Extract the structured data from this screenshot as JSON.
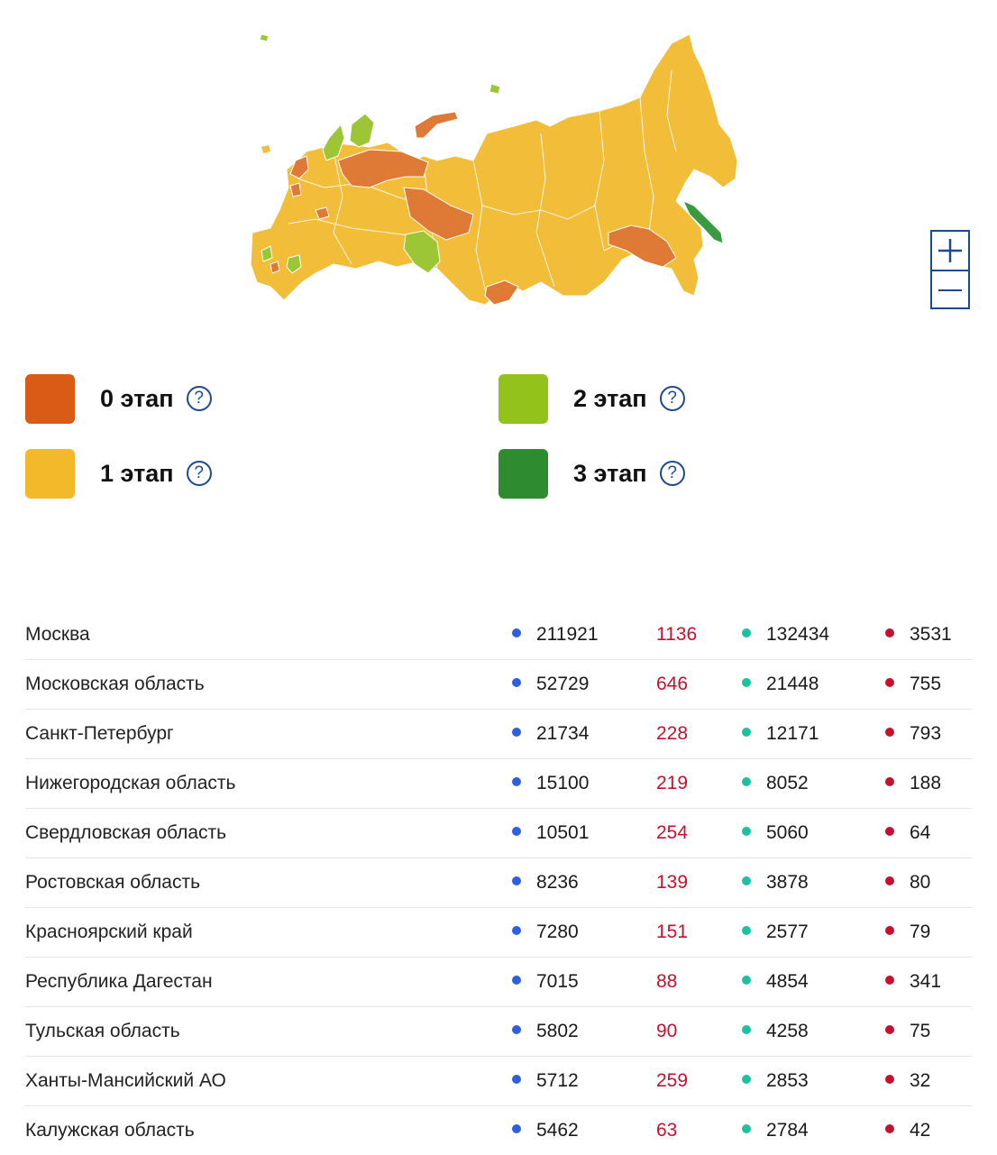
{
  "colors": {
    "stage0": "#d95b16",
    "stage1": "#f2b92b",
    "stage2": "#93c21b",
    "stage3": "#2e8b30",
    "map_stage0": "#de7a35",
    "map_stage1": "#f2bd38",
    "map_stage2": "#9dc636",
    "map_stage3": "#3a9a40",
    "cases_dot": "#2f5fe0",
    "new_cases_text": "#c8102e",
    "recovered_dot": "#19c2a0",
    "deaths_dot": "#c8102e",
    "accent": "#1d4a8c"
  },
  "map": {
    "zoom_in_icon": "plus-icon",
    "zoom_out_icon": "minus-icon"
  },
  "legend": [
    {
      "label": "0 этап",
      "color": "#d95b16"
    },
    {
      "label": "2 этап",
      "color": "#93c21b"
    },
    {
      "label": "1 этап",
      "color": "#f2b92b"
    },
    {
      "label": "3 этап",
      "color": "#2e8b30"
    }
  ],
  "legend_help_symbol": "?",
  "regions": [
    {
      "name": "Москва",
      "cases": "211921",
      "new": "1136",
      "recovered": "132434",
      "deaths": "3531"
    },
    {
      "name": "Московская область",
      "cases": "52729",
      "new": "646",
      "recovered": "21448",
      "deaths": "755"
    },
    {
      "name": "Санкт-Петербург",
      "cases": "21734",
      "new": "228",
      "recovered": "12171",
      "deaths": "793"
    },
    {
      "name": "Нижегородская область",
      "cases": "15100",
      "new": "219",
      "recovered": "8052",
      "deaths": "188"
    },
    {
      "name": "Свердловская область",
      "cases": "10501",
      "new": "254",
      "recovered": "5060",
      "deaths": "64"
    },
    {
      "name": "Ростовская область",
      "cases": "8236",
      "new": "139",
      "recovered": "3878",
      "deaths": "80"
    },
    {
      "name": "Красноярский край",
      "cases": "7280",
      "new": "151",
      "recovered": "2577",
      "deaths": "79"
    },
    {
      "name": "Республика Дагестан",
      "cases": "7015",
      "new": "88",
      "recovered": "4854",
      "deaths": "341"
    },
    {
      "name": "Тульская область",
      "cases": "5802",
      "new": "90",
      "recovered": "4258",
      "deaths": "75"
    },
    {
      "name": "Ханты-Мансийский АО",
      "cases": "5712",
      "new": "259",
      "recovered": "2853",
      "deaths": "32"
    },
    {
      "name": "Калужская область",
      "cases": "5462",
      "new": "63",
      "recovered": "2784",
      "deaths": "42"
    }
  ]
}
